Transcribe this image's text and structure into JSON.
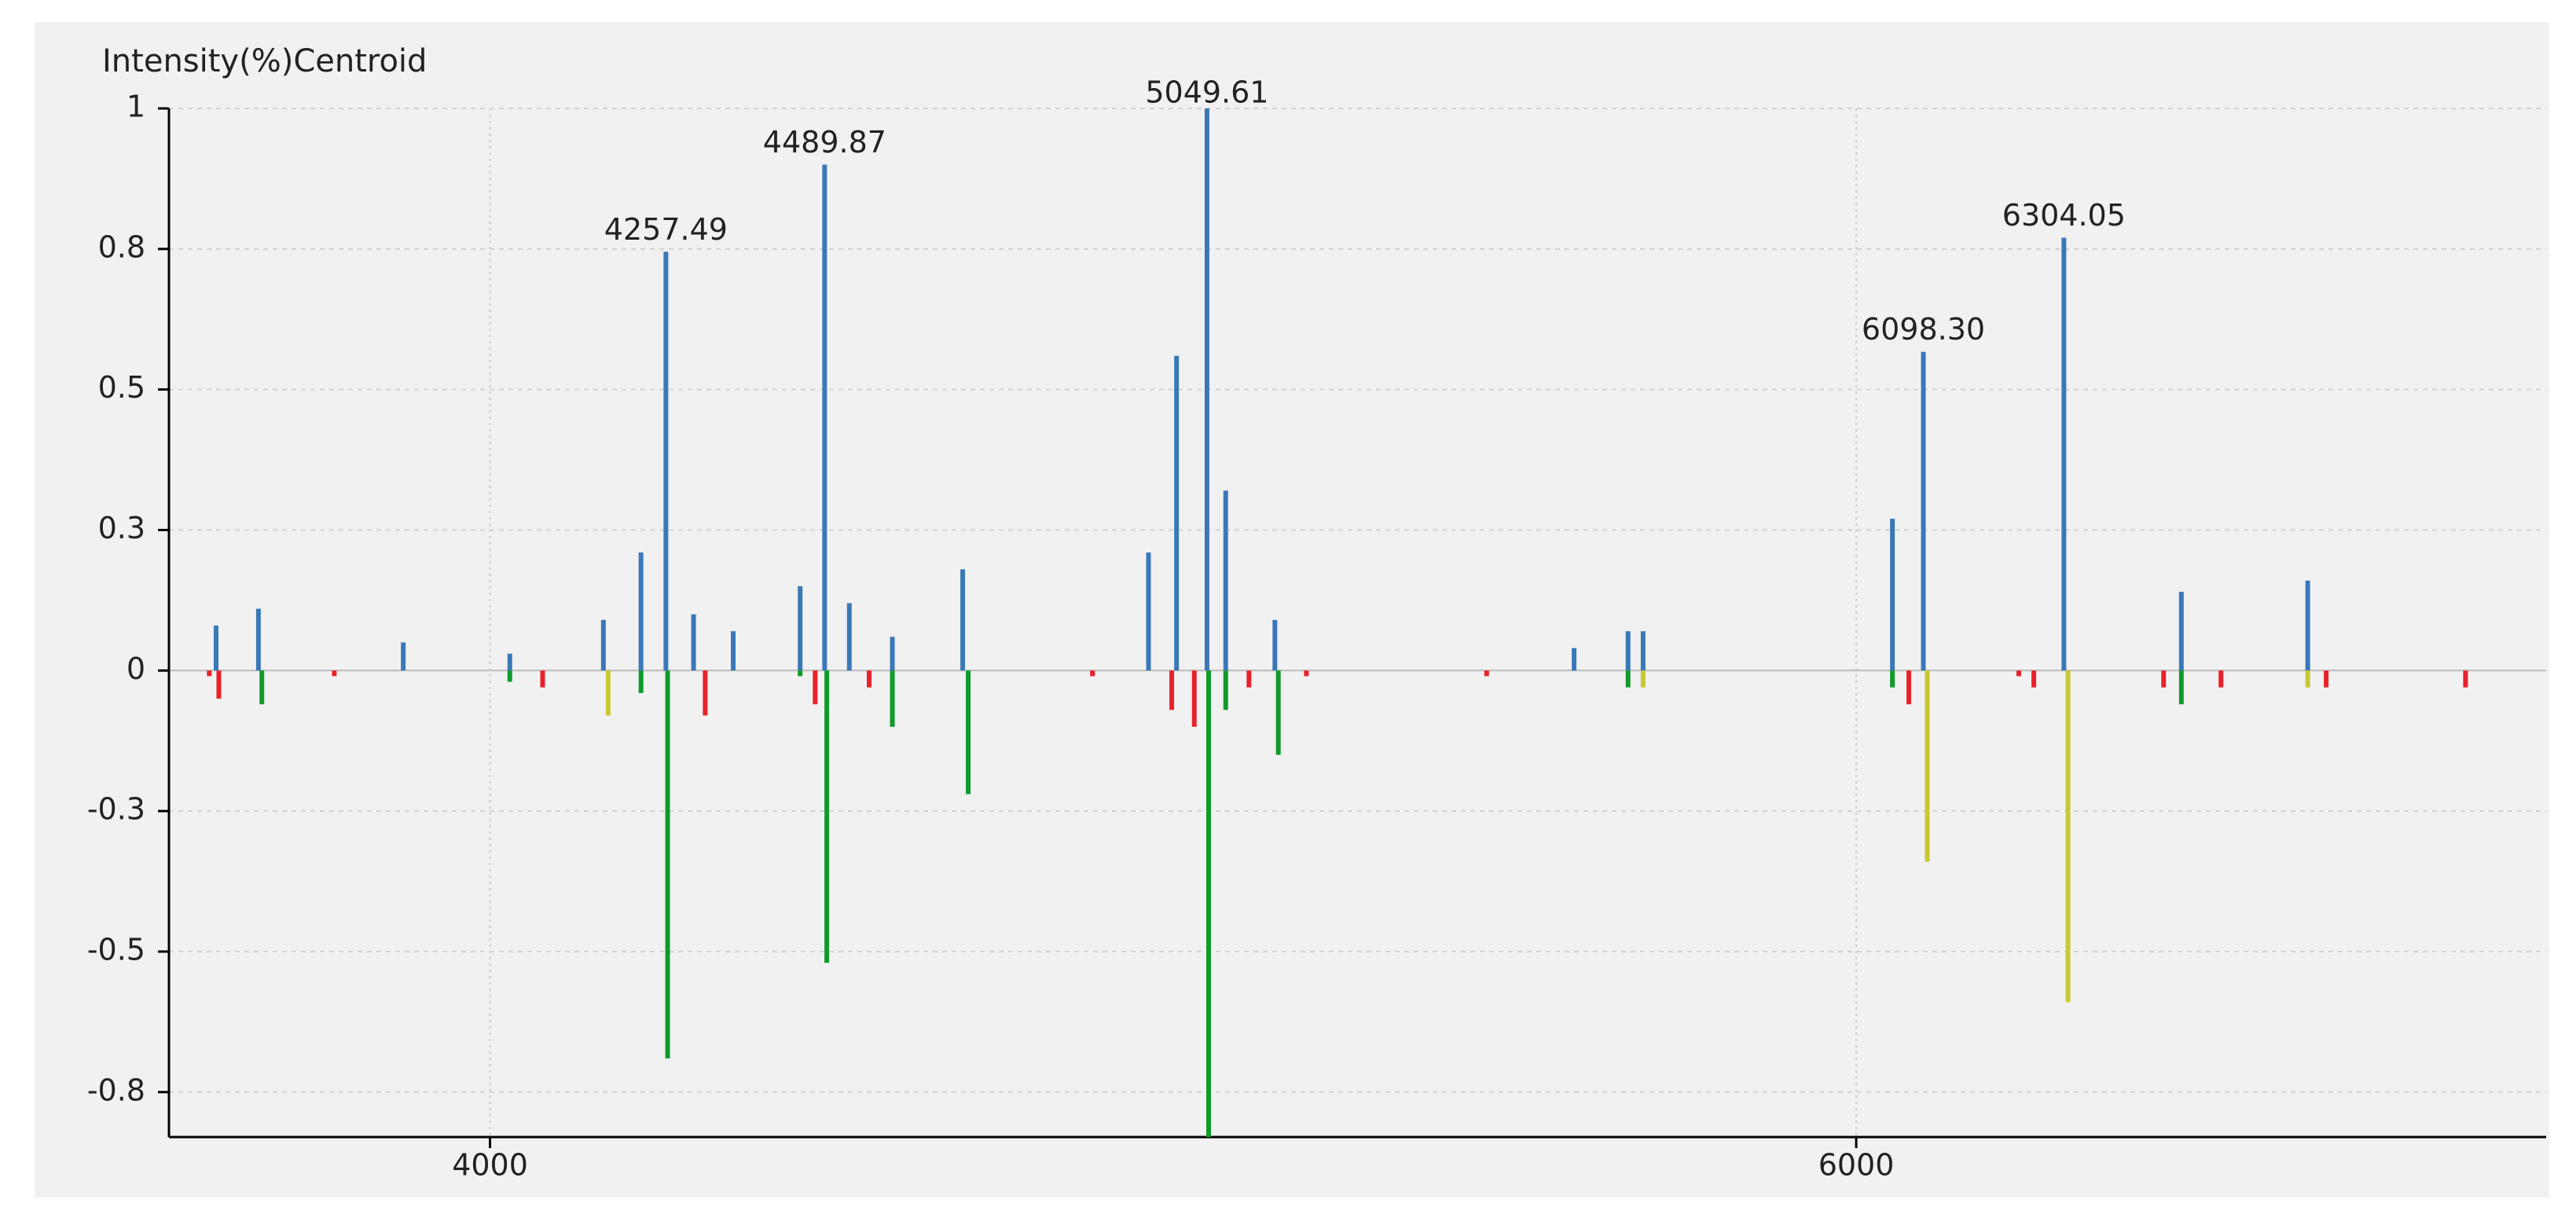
{
  "chart_data": {
    "type": "stem",
    "y_axis_label": "Intensity(%)Centroid",
    "xlim": [
      3530,
      7010
    ],
    "ylim": [
      -0.83,
      1.0
    ],
    "xticks": [
      4000,
      6000
    ],
    "yticks": [
      {
        "value": -0.75,
        "label": "-0.8"
      },
      {
        "value": -0.5,
        "label": "-0.5"
      },
      {
        "value": -0.25,
        "label": "-0.3"
      },
      0,
      {
        "value": 0.25,
        "label": "0.3"
      },
      {
        "value": 0.5,
        "label": "0.5"
      },
      {
        "value": 0.75,
        "label": "0.8"
      },
      1
    ],
    "grid": true,
    "series": [
      {
        "color": "#3a78b8",
        "x": [
          3599,
          3661,
          3873,
          4029,
          4166,
          4221,
          4257.49,
          4298,
          4356,
          4454,
          4489.87,
          4526,
          4589,
          4692,
          4964,
          5005,
          5049.61,
          5077,
          5149,
          5587,
          5666,
          5688,
          6053,
          6098.3,
          6304.05,
          6476,
          6661
        ],
        "values": [
          0.08,
          0.11,
          0.05,
          0.03,
          0.09,
          0.21,
          0.745,
          0.1,
          0.07,
          0.15,
          0.9,
          0.12,
          0.06,
          0.18,
          0.21,
          0.56,
          1.0,
          0.32,
          0.09,
          0.04,
          0.07,
          0.07,
          0.27,
          0.567,
          0.77,
          0.14,
          0.16
        ]
      },
      {
        "color": "#e8222a",
        "x": [
          3589,
          3603,
          3772,
          4077,
          4315,
          4476,
          4555,
          4882,
          4998,
          5031,
          5111,
          5195,
          5459,
          6077,
          6238,
          6260,
          6450,
          6534,
          6688,
          6892
        ],
        "values": [
          -0.01,
          -0.05,
          -0.01,
          -0.03,
          -0.08,
          -0.06,
          -0.03,
          -0.01,
          -0.07,
          -0.1,
          -0.03,
          -0.01,
          -0.01,
          -0.06,
          -0.01,
          -0.03,
          -0.03,
          -0.03,
          -0.03,
          -0.03
        ]
      },
      {
        "color": "#0f9a2a",
        "x": [
          3666,
          4029,
          4221,
          4260,
          4454,
          4493,
          4589,
          4700,
          5052,
          5077,
          5154,
          5666,
          6053,
          6476
        ],
        "values": [
          -0.06,
          -0.02,
          -0.04,
          -0.69,
          -0.01,
          -0.52,
          -0.1,
          -0.22,
          -0.83,
          -0.07,
          -0.15,
          -0.03,
          -0.03,
          -0.06
        ]
      },
      {
        "color": "#c8c832",
        "x": [
          4173,
          5688,
          6104,
          6310,
          6661
        ],
        "values": [
          -0.08,
          -0.03,
          -0.34,
          -0.59,
          -0.03
        ]
      }
    ],
    "annotations": [
      {
        "text": "4257.49",
        "x": 4257.49
      },
      {
        "text": "4489.87",
        "x": 4489.87
      },
      {
        "text": "5049.61",
        "x": 5049.61
      },
      {
        "text": "6098.30",
        "x": 6098.3
      },
      {
        "text": "6304.05",
        "x": 6304.05
      }
    ]
  }
}
